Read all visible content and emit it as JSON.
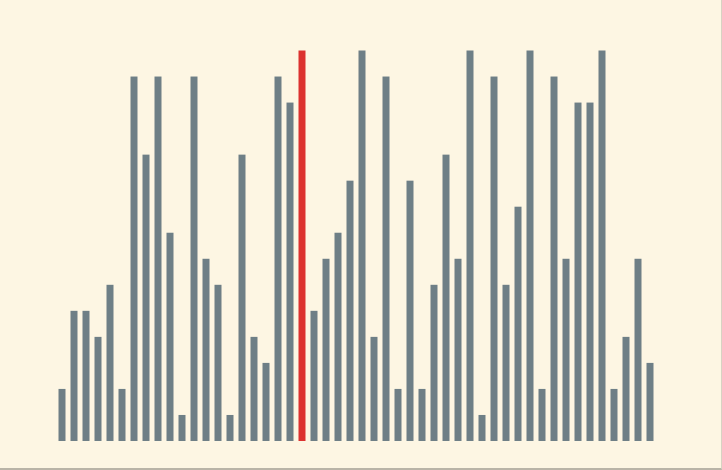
{
  "colors": {
    "background": "#fdf6e3",
    "bar": "#6e7f86",
    "highlight": "#dc322f"
  },
  "chart_data": {
    "type": "bar",
    "title": "",
    "xlabel": "",
    "ylabel": "",
    "ylim": [
      0,
      15
    ],
    "grid": false,
    "legend": "none",
    "highlight_index": 20,
    "values": [
      2,
      5,
      5,
      4,
      6,
      2,
      14,
      11,
      14,
      8,
      1,
      14,
      7,
      6,
      1,
      11,
      4,
      3,
      14,
      13,
      15,
      5,
      7,
      8,
      10,
      15,
      4,
      14,
      2,
      10,
      2,
      6,
      11,
      7,
      15,
      1,
      14,
      6,
      9,
      15,
      2,
      14,
      7,
      13,
      13,
      15,
      2,
      4,
      7,
      3
    ]
  }
}
